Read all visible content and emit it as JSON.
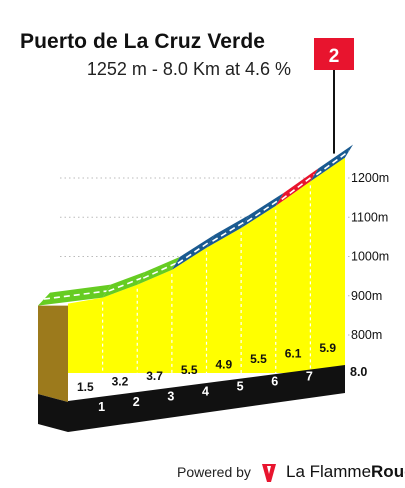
{
  "header": {
    "title": "Puerto de La Cruz Verde",
    "subtitle": "1252 m - 8.0 Km at 4.6 %"
  },
  "footer": {
    "powered_by": "Powered by",
    "brand_part1": "La Flamme",
    "brand_part2": "Rouge",
    "logo_icon": "flamme-rouge-logo-icon"
  },
  "colors": {
    "fill": "#ffff00",
    "side": "#9c7a1c",
    "base": "#111111",
    "gradient_low": "#66cc22",
    "gradient_mid": "#1a5a90",
    "gradient_high": "#e8142e",
    "flag": "#e8142e"
  },
  "chart_data": {
    "type": "area",
    "title": "Puerto de La Cruz Verde",
    "subtitle": "1252 m - 8.0 Km at 4.6 %",
    "x_unit": "km",
    "y_unit": "m",
    "km_markers": [
      "1",
      "2",
      "3",
      "4",
      "5",
      "6",
      "7"
    ],
    "end_label": "8.0",
    "segments": [
      {
        "km_start": 0,
        "km_end": 1,
        "gradient": 1.5,
        "gradient_label": "1.5",
        "category": "low"
      },
      {
        "km_start": 1,
        "km_end": 2,
        "gradient": 3.2,
        "gradient_label": "3.2",
        "category": "low"
      },
      {
        "km_start": 2,
        "km_end": 3,
        "gradient": 3.7,
        "gradient_label": "3.7",
        "category": "low"
      },
      {
        "km_start": 3,
        "km_end": 4,
        "gradient": 5.5,
        "gradient_label": "5.5",
        "category": "mid"
      },
      {
        "km_start": 4,
        "km_end": 5,
        "gradient": 4.9,
        "gradient_label": "4.9",
        "category": "mid"
      },
      {
        "km_start": 5,
        "km_end": 6,
        "gradient": 5.5,
        "gradient_label": "5.5",
        "category": "mid"
      },
      {
        "km_start": 6,
        "km_end": 7,
        "gradient": 6.1,
        "gradient_label": "6.1",
        "category": "high"
      },
      {
        "km_start": 7,
        "km_end": 8,
        "gradient": 5.9,
        "gradient_label": "5.9",
        "category": "mid"
      }
    ],
    "start_altitude": 880,
    "end_altitude": 1252,
    "altitude_ticks": [
      {
        "value": 800,
        "label": "800m"
      },
      {
        "value": 900,
        "label": "900m"
      },
      {
        "value": 1000,
        "label": "1000m"
      },
      {
        "value": 1100,
        "label": "1100m"
      },
      {
        "value": 1200,
        "label": "1200m"
      }
    ],
    "category_badge": "2"
  }
}
